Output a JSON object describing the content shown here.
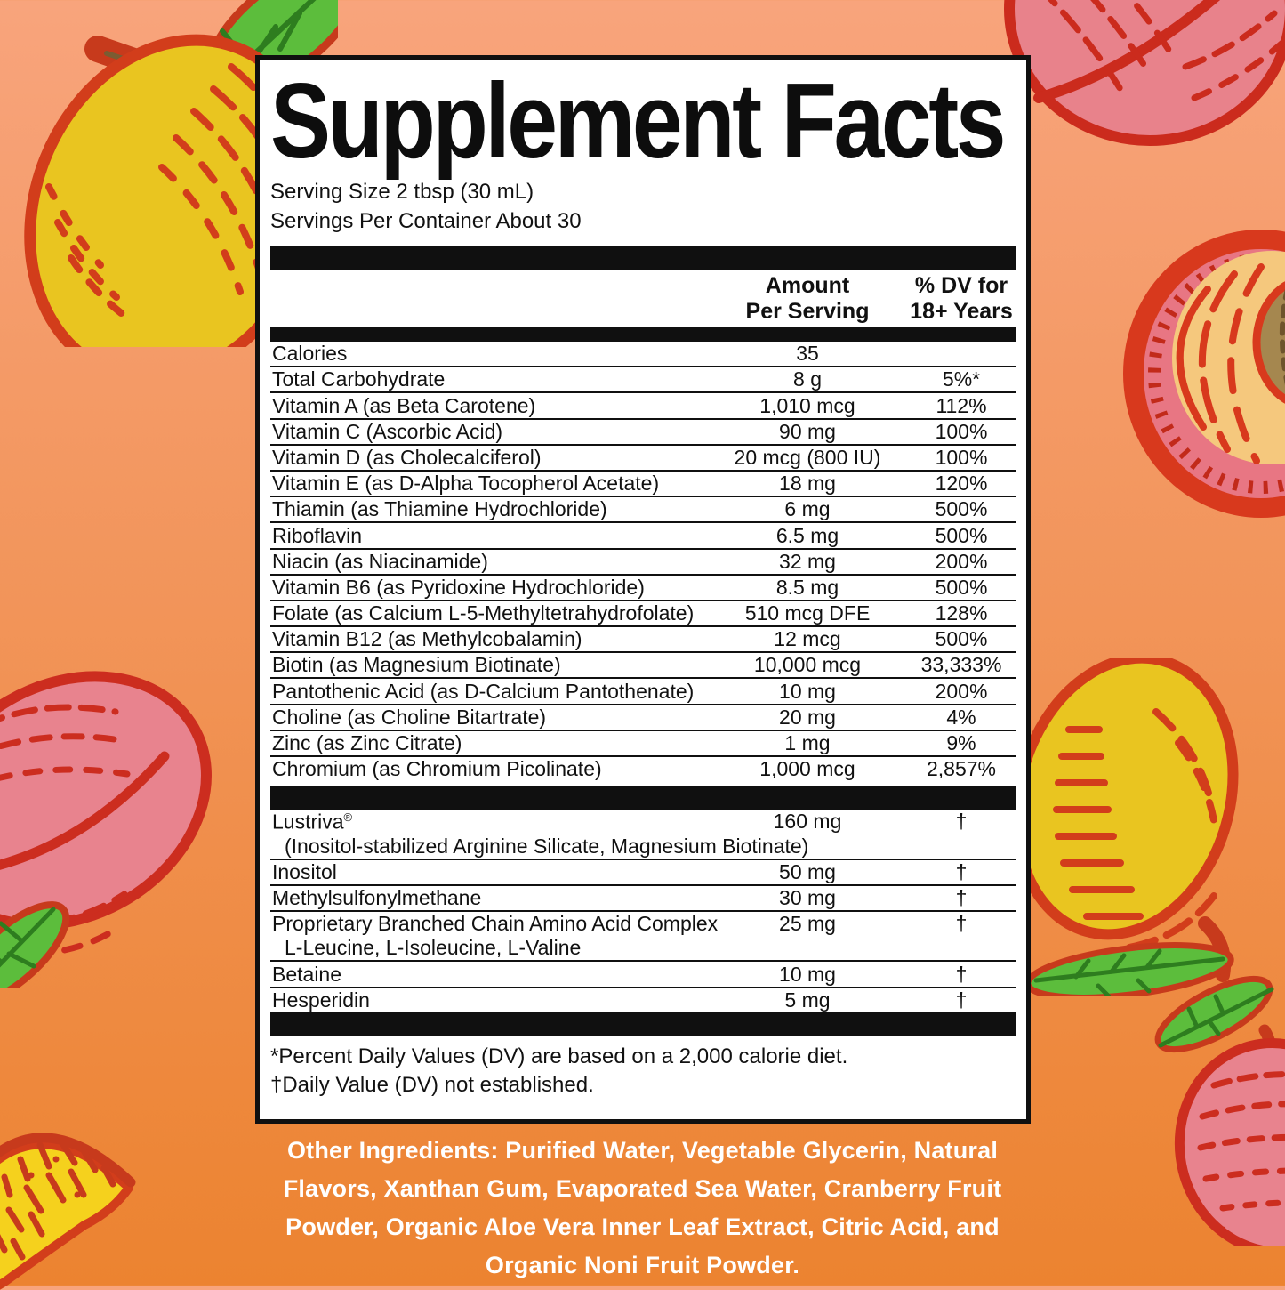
{
  "panel": {
    "title": "Supplement Facts",
    "serving_size": "Serving Size 2 tbsp (30 mL)",
    "servings_per_container": "Servings Per Container About 30",
    "columns": {
      "amount_line1": "Amount",
      "amount_line2": "Per Serving",
      "dv_line1": "% DV for",
      "dv_line2": "18+ Years"
    },
    "main_rows": [
      {
        "name": "Calories",
        "amount": "35",
        "dv": ""
      },
      {
        "name": "Total Carbohydrate",
        "amount": "8 g",
        "dv": "5%*"
      },
      {
        "name": "Vitamin A (as Beta Carotene)",
        "amount": "1,010 mcg",
        "dv": "112%"
      },
      {
        "name": "Vitamin C (Ascorbic Acid)",
        "amount": "90 mg",
        "dv": "100%"
      },
      {
        "name": "Vitamin D (as Cholecalciferol)",
        "amount": "20 mcg (800 IU)",
        "dv": "100%"
      },
      {
        "name": "Vitamin E (as D-Alpha Tocopherol Acetate)",
        "amount": "18 mg",
        "dv": "120%"
      },
      {
        "name": "Thiamin (as Thiamine Hydrochloride)",
        "amount": "6 mg",
        "dv": "500%"
      },
      {
        "name": "Riboflavin",
        "amount": "6.5 mg",
        "dv": "500%"
      },
      {
        "name": "Niacin (as Niacinamide)",
        "amount": "32 mg",
        "dv": "200%"
      },
      {
        "name": "Vitamin B6 (as Pyridoxine Hydrochloride)",
        "amount": "8.5 mg",
        "dv": "500%"
      },
      {
        "name": "Folate (as Calcium L-5-Methyltetrahydrofolate)",
        "amount": "510 mcg DFE",
        "dv": "128%"
      },
      {
        "name": "Vitamin B12 (as Methylcobalamin)",
        "amount": "12 mcg",
        "dv": "500%"
      },
      {
        "name": "Biotin (as Magnesium Biotinate)",
        "amount": "10,000 mcg",
        "dv": "33,333%"
      },
      {
        "name": "Pantothenic Acid (as D-Calcium Pantothenate)",
        "amount": "10 mg",
        "dv": "200%"
      },
      {
        "name": "Choline (as Choline Bitartrate)",
        "amount": "20 mg",
        "dv": "4%"
      },
      {
        "name": "Zinc (as Zinc Citrate)",
        "amount": "1 mg",
        "dv": "9%"
      },
      {
        "name": "Chromium (as Chromium Picolinate)",
        "amount": "1,000 mcg",
        "dv": "2,857%"
      }
    ],
    "extra_rows": [
      {
        "name": "Lustriva",
        "reg_mark": "®",
        "amount": "160 mg",
        "dv": "†",
        "subtext": "(Inositol-stabilized Arginine Silicate, Magnesium Biotinate)"
      },
      {
        "name": "Inositol",
        "amount": "50 mg",
        "dv": "†"
      },
      {
        "name": "Methylsulfonylmethane",
        "amount": "30 mg",
        "dv": "†"
      },
      {
        "name": "Proprietary Branched Chain Amino Acid Complex",
        "amount": "25 mg",
        "dv": "†",
        "subtext": "L-Leucine, L-Isoleucine, L-Valine"
      },
      {
        "name": "Betaine",
        "amount": "10 mg",
        "dv": "†"
      },
      {
        "name": "Hesperidin",
        "amount": "5 mg",
        "dv": "†"
      }
    ],
    "footnotes": [
      "*Percent Daily Values (DV) are based on a 2,000 calorie diet.",
      "†Daily Value (DV) not established."
    ]
  },
  "other_ingredients": {
    "lines": [
      "Other Ingredients: Purified Water, Vegetable Glycerin, Natural",
      "Flavors, Xanthan Gum, Evaporated Sea Water, Cranberry Fruit",
      "Powder, Organic Aloe Vera Inner Leaf Extract, Citric Acid, and",
      "Organic Noni Fruit Powder."
    ]
  },
  "colors": {
    "background_top": "#F8A47C",
    "background_bottom": "#EC8330",
    "panel_bg": "#FFFFFF",
    "panel_border": "#101010",
    "bar": "#101010",
    "text": "#111111",
    "ingredients_text": "#FFFFFF",
    "fruit_yellow": "#E9C520",
    "fruit_outline_red": "#D23D1B",
    "fruit_pink": "#E8828B",
    "fruit_pink_outline": "#CB2B1D",
    "leaf_green": "#5CBD3C",
    "leaf_dark_green": "#2E7D1F",
    "peach_flesh": "#F5C87D",
    "peach_pit": "#A5874F"
  }
}
